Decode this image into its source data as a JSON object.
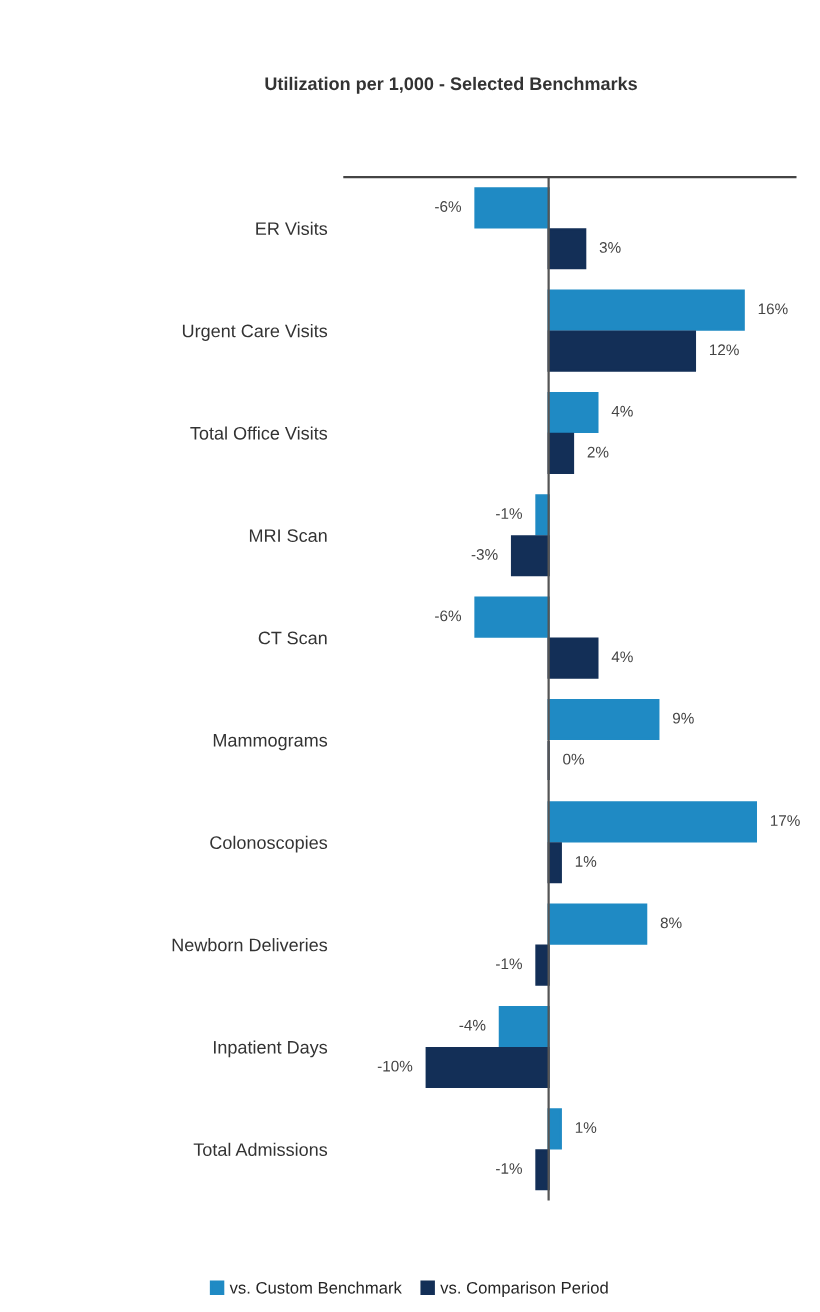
{
  "chart_data": {
    "type": "bar",
    "orientation": "horizontal",
    "title": "Utilization per 1,000 - Selected Benchmarks",
    "categories": [
      "ER Visits",
      "Urgent Care Visits",
      "Total Office Visits",
      "MRI Scan",
      "CT Scan",
      "Mammograms",
      "Colonoscopies",
      "Newborn Deliveries",
      "Inpatient Days",
      "Total Admissions"
    ],
    "series": [
      {
        "name": "vs. Custom Benchmark",
        "color": "#1f8ac4",
        "values": [
          -6,
          16,
          4,
          -1,
          -6,
          9,
          17,
          8,
          -4,
          1
        ],
        "value_labels": [
          "-6%",
          "16%",
          "4%",
          "-1%",
          "-6%",
          "9%",
          "17%",
          "8%",
          "-4%",
          "1%"
        ]
      },
      {
        "name": "vs. Comparison Period",
        "color": "#132f57",
        "values": [
          3,
          12,
          2,
          -3,
          4,
          0,
          1,
          -1,
          -10,
          -1
        ],
        "value_labels": [
          "3%",
          "12%",
          "2%",
          "-3%",
          "4%",
          "0%",
          "1%",
          "-1%",
          "-10%",
          "-1%"
        ]
      }
    ],
    "legend": "bottom"
  }
}
